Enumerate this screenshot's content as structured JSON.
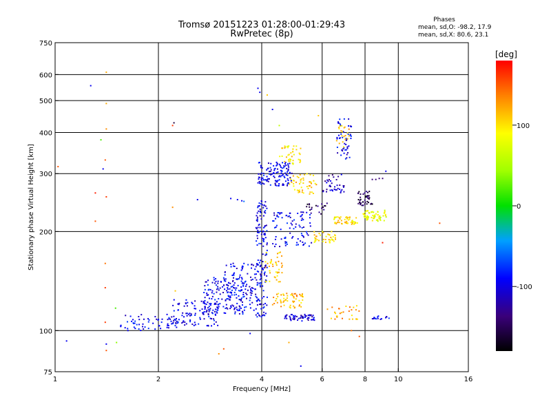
{
  "chart_data": {
    "type": "scatter",
    "title": "Tromsø 20151223 01:28:00-01:29:43",
    "subtitle": "RwPretec (8p)",
    "xlabel": "Frequency [MHz]",
    "ylabel": "Stationary phase Virtual Height [km]",
    "x_scale": "log2",
    "y_scale": "log",
    "xlim": [
      1,
      16
    ],
    "ylim": [
      75,
      750
    ],
    "x_ticks": [
      "1",
      "2",
      "4",
      "6",
      "8",
      "10",
      "16"
    ],
    "y_ticks": [
      "75",
      "100",
      "200",
      "300",
      "400",
      "500",
      "600",
      "750"
    ],
    "grid": true,
    "phase_stats": {
      "heading": "Phases",
      "line1": "mean, sd,O: -98.2, 17.9",
      "line2": "mean, sd,X:  80.6, 23.1"
    },
    "colorbar": {
      "label": "[deg]",
      "range": [
        -180,
        180
      ],
      "ticks": [
        "100",
        "0",
        "-100"
      ],
      "tick_values": [
        100,
        0,
        -100
      ]
    },
    "points": [
      [
        1.08,
        93,
        -100
      ],
      [
        1.27,
        555,
        -100
      ],
      [
        1.41,
        610,
        120
      ],
      [
        1.38,
        310,
        -100
      ],
      [
        1.4,
        330,
        150
      ],
      [
        1.41,
        490,
        120
      ],
      [
        1.41,
        410,
        130
      ],
      [
        1.41,
        255,
        160
      ],
      [
        1.31,
        262,
        170
      ],
      [
        1.31,
        215,
        150
      ],
      [
        1.36,
        380,
        20
      ],
      [
        1.4,
        160,
        140
      ],
      [
        1.4,
        135,
        160
      ],
      [
        1.4,
        106,
        160
      ],
      [
        1.41,
        91,
        -100
      ],
      [
        1.41,
        87,
        150
      ],
      [
        1.5,
        117,
        20
      ],
      [
        1.51,
        92,
        40
      ],
      [
        1.6,
        102,
        -100
      ],
      [
        1.63,
        100,
        -100
      ],
      [
        2.2,
        420,
        160
      ],
      [
        2.22,
        428,
        -160
      ],
      [
        2.2,
        237,
        130
      ],
      [
        2.24,
        132,
        110
      ],
      [
        3.1,
        88,
        150
      ],
      [
        3.0,
        85,
        130
      ],
      [
        1.02,
        315,
        150
      ],
      [
        2.6,
        250,
        -100
      ],
      [
        3.25,
        252,
        -100
      ],
      [
        3.4,
        250,
        -100
      ],
      [
        3.5,
        248,
        -100
      ],
      [
        3.55,
        247,
        -60
      ],
      [
        3.9,
        545,
        -100
      ],
      [
        3.95,
        530,
        -100
      ],
      [
        4.15,
        520,
        110
      ],
      [
        4.3,
        470,
        -100
      ],
      [
        4.5,
        420,
        60
      ],
      [
        5.85,
        450,
        110
      ],
      [
        3.7,
        98,
        -100
      ],
      [
        4.8,
        92,
        120
      ],
      [
        5.2,
        78,
        -100
      ],
      [
        7.7,
        96,
        150
      ],
      [
        7.3,
        100,
        140
      ],
      [
        9.0,
        185,
        170
      ],
      [
        13.2,
        212,
        150
      ],
      [
        8.4,
        288,
        -140
      ],
      [
        8.6,
        288,
        -140
      ],
      [
        8.8,
        290,
        -140
      ],
      [
        9.0,
        290,
        -140
      ],
      [
        9.2,
        305,
        -100
      ]
    ],
    "clusters": [
      {
        "x": [
          1.55,
          2.3
        ],
        "y": [
          100,
          112
        ],
        "n": 60,
        "phase": -100
      },
      {
        "x": [
          2.2,
          3.0
        ],
        "y": [
          103,
          125
        ],
        "n": 110,
        "phase": -100
      },
      {
        "x": [
          2.7,
          3.6
        ],
        "y": [
          112,
          145
        ],
        "n": 130,
        "phase": -100
      },
      {
        "x": [
          3.1,
          3.9
        ],
        "y": [
          115,
          162
        ],
        "n": 120,
        "phase": -100
      },
      {
        "x": [
          3.85,
          4.15
        ],
        "y": [
          110,
          250
        ],
        "n": 150,
        "phase": -100
      },
      {
        "x": [
          3.9,
          4.9
        ],
        "y": [
          275,
          325
        ],
        "n": 130,
        "phase": -100
      },
      {
        "x": [
          4.3,
          5.6
        ],
        "y": [
          180,
          230
        ],
        "n": 90,
        "phase": -100
      },
      {
        "x": [
          4.6,
          5.7
        ],
        "y": [
          107,
          112
        ],
        "n": 60,
        "phase": -110
      },
      {
        "x": [
          4.3,
          5.3
        ],
        "y": [
          117,
          130
        ],
        "n": 60,
        "phase": 115
      },
      {
        "x": [
          4.5,
          5.2
        ],
        "y": [
          320,
          365
        ],
        "n": 40,
        "phase": 100
      },
      {
        "x": [
          4.8,
          5.8
        ],
        "y": [
          260,
          300
        ],
        "n": 50,
        "phase": 105
      },
      {
        "x": [
          6.5,
          7.6
        ],
        "y": [
          210,
          222
        ],
        "n": 50,
        "phase": 100
      },
      {
        "x": [
          7.9,
          9.3
        ],
        "y": [
          215,
          232
        ],
        "n": 60,
        "phase": 80
      },
      {
        "x": [
          5.6,
          6.6
        ],
        "y": [
          185,
          200
        ],
        "n": 40,
        "phase": 100
      },
      {
        "x": [
          6.6,
          7.3
        ],
        "y": [
          330,
          440
        ],
        "n": 50,
        "phase": -100
      },
      {
        "x": [
          6.6,
          7.2
        ],
        "y": [
          360,
          420
        ],
        "n": 20,
        "phase": 110
      },
      {
        "x": [
          6.0,
          7.0
        ],
        "y": [
          262,
          300
        ],
        "n": 40,
        "phase": -120
      },
      {
        "x": [
          7.6,
          8.4
        ],
        "y": [
          240,
          265
        ],
        "n": 40,
        "phase": -150
      },
      {
        "x": [
          4.1,
          4.6
        ],
        "y": [
          140,
          175
        ],
        "n": 40,
        "phase": 110
      },
      {
        "x": [
          6.2,
          7.7
        ],
        "y": [
          108,
          120
        ],
        "n": 30,
        "phase": 120
      },
      {
        "x": [
          8.4,
          9.4
        ],
        "y": [
          108,
          111
        ],
        "n": 15,
        "phase": -100
      },
      {
        "x": [
          5.4,
          6.2
        ],
        "y": [
          225,
          245
        ],
        "n": 20,
        "phase": -150
      }
    ]
  }
}
